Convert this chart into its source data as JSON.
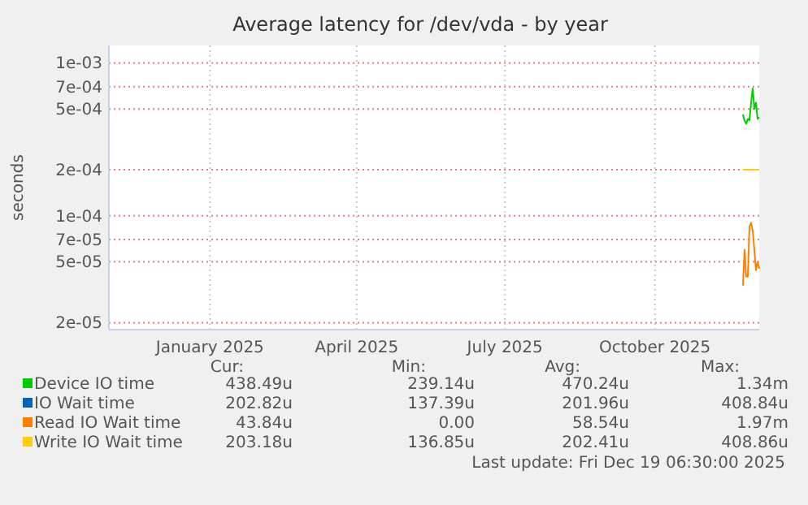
{
  "chart_data": {
    "type": "line",
    "title": "Average latency for /dev/vda - by year",
    "ylabel": "seconds",
    "x": [
      "2025-12-09",
      "2025-12-10",
      "2025-12-11",
      "2025-12-12",
      "2025-12-13",
      "2025-12-14",
      "2025-12-15",
      "2025-12-16",
      "2025-12-17",
      "2025-12-18",
      "2025-12-19"
    ],
    "series": [
      {
        "name": "Device IO time",
        "color": "#00cc00",
        "values": [
          0.00046,
          0.00042,
          0.0004,
          0.00043,
          0.00042,
          0.00055,
          0.00068,
          0.0005,
          0.00055,
          0.00043,
          0.00044
        ]
      },
      {
        "name": "IO Wait time",
        "color": "#0066b3",
        "values": [
          null,
          null,
          null,
          null,
          null,
          null,
          null,
          null,
          null,
          null,
          null
        ]
      },
      {
        "name": "Read IO Wait time",
        "color": "#ff8000",
        "values": [
          3.5e-05,
          6e-05,
          4e-05,
          4e-05,
          8.5e-05,
          9e-05,
          8e-05,
          6e-05,
          4.4e-05,
          5e-05,
          4.5e-05
        ]
      },
      {
        "name": "Write IO Wait time",
        "color": "#ffcc00",
        "values": [
          0.0002,
          0.0002,
          0.0002,
          0.0002,
          0.0002,
          0.0002,
          0.0002,
          0.0002,
          0.0002,
          0.0002,
          0.0002
        ]
      }
    ],
    "log": true,
    "ylim": [
      1.8e-05,
      0.0013
    ],
    "yticks": [
      {
        "value": 2e-05,
        "label": "2e-05"
      },
      {
        "value": 5e-05,
        "label": "5e-05"
      },
      {
        "value": 7e-05,
        "label": "7e-05"
      },
      {
        "value": 0.0001,
        "label": "1e-04"
      },
      {
        "value": 0.0002,
        "label": "2e-04"
      },
      {
        "value": 0.0005,
        "label": "5e-04"
      },
      {
        "value": 0.0007,
        "label": "7e-04"
      },
      {
        "value": 0.001,
        "label": "1e-03"
      }
    ],
    "xlim": [
      "2024-11-15",
      "2025-12-19"
    ],
    "xticks": [
      {
        "value": "2025-01-16",
        "label": "January 2025"
      },
      {
        "value": "2025-04-16",
        "label": "April 2025"
      },
      {
        "value": "2025-07-16",
        "label": "July 2025"
      },
      {
        "value": "2025-10-16",
        "label": "October 2025"
      }
    ],
    "grid": true,
    "legend": "bottom",
    "line_style": "solid",
    "annotations": [
      "Cur:",
      "Min:",
      "Avg:",
      "Max:",
      "438.49u",
      "239.14u",
      "470.24u",
      "1.34m",
      "202.82u",
      "137.39u",
      "201.96u",
      "408.84u",
      "43.84u",
      "0.00",
      "58.54u",
      "1.97m",
      "203.18u",
      "136.85u",
      "202.41u",
      "408.86u",
      "Last update: Fri Dec 19 06:30:00 2025"
    ]
  }
}
